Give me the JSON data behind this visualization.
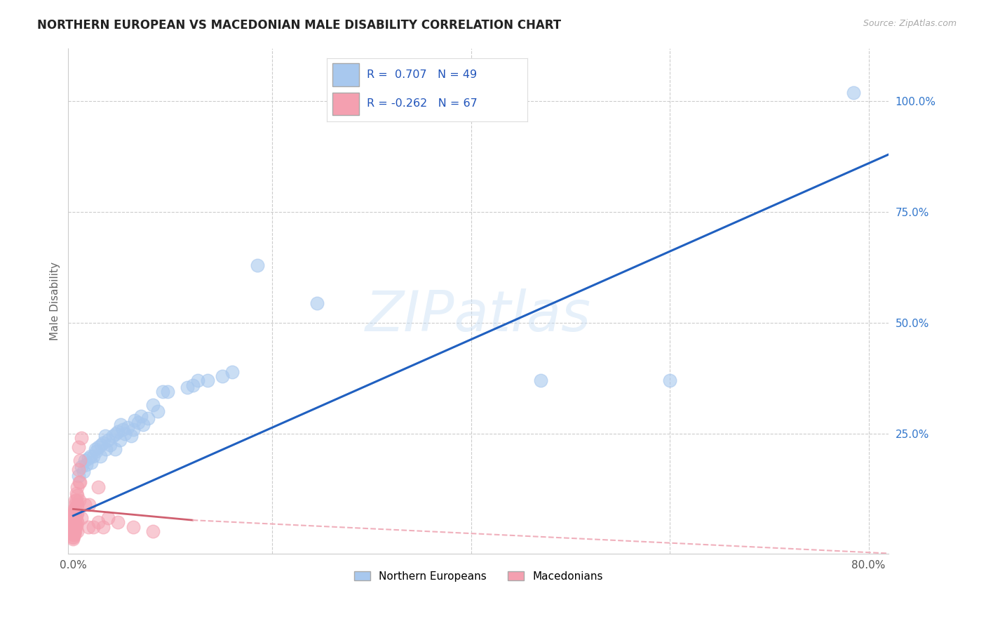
{
  "title": "NORTHERN EUROPEAN VS MACEDONIAN MALE DISABILITY CORRELATION CHART",
  "source": "Source: ZipAtlas.com",
  "ylabel": "Male Disability",
  "watermark": "ZIPatlas",
  "xlim": [
    -0.005,
    0.82
  ],
  "ylim": [
    -0.02,
    1.12
  ],
  "xtick_positions": [
    0.0,
    0.8
  ],
  "xticklabels": [
    "0.0%",
    "80.0%"
  ],
  "yticks_right": [
    0.0,
    0.25,
    0.5,
    0.75,
    1.0
  ],
  "yticklabels_right": [
    "",
    "25.0%",
    "50.0%",
    "75.0%",
    "100.0%"
  ],
  "blue_color": "#a8c8ee",
  "pink_color": "#f4a0b0",
  "blue_line_color": "#2060c0",
  "pink_line_color": "#d06070",
  "pink_dashed_color": "#f0b0bc",
  "grid_color": "#cccccc",
  "blue_scatter": [
    [
      0.005,
      0.155
    ],
    [
      0.008,
      0.175
    ],
    [
      0.01,
      0.165
    ],
    [
      0.012,
      0.19
    ],
    [
      0.013,
      0.18
    ],
    [
      0.015,
      0.195
    ],
    [
      0.017,
      0.2
    ],
    [
      0.018,
      0.185
    ],
    [
      0.02,
      0.2
    ],
    [
      0.022,
      0.215
    ],
    [
      0.023,
      0.21
    ],
    [
      0.025,
      0.22
    ],
    [
      0.027,
      0.2
    ],
    [
      0.028,
      0.225
    ],
    [
      0.03,
      0.23
    ],
    [
      0.032,
      0.245
    ],
    [
      0.033,
      0.215
    ],
    [
      0.035,
      0.235
    ],
    [
      0.037,
      0.225
    ],
    [
      0.04,
      0.245
    ],
    [
      0.042,
      0.215
    ],
    [
      0.043,
      0.25
    ],
    [
      0.045,
      0.255
    ],
    [
      0.047,
      0.235
    ],
    [
      0.048,
      0.27
    ],
    [
      0.05,
      0.26
    ],
    [
      0.052,
      0.25
    ],
    [
      0.055,
      0.265
    ],
    [
      0.058,
      0.245
    ],
    [
      0.06,
      0.26
    ],
    [
      0.062,
      0.28
    ],
    [
      0.065,
      0.275
    ],
    [
      0.068,
      0.29
    ],
    [
      0.07,
      0.27
    ],
    [
      0.075,
      0.285
    ],
    [
      0.08,
      0.315
    ],
    [
      0.085,
      0.3
    ],
    [
      0.09,
      0.345
    ],
    [
      0.095,
      0.345
    ],
    [
      0.115,
      0.355
    ],
    [
      0.12,
      0.36
    ],
    [
      0.125,
      0.37
    ],
    [
      0.135,
      0.37
    ],
    [
      0.15,
      0.38
    ],
    [
      0.16,
      0.39
    ],
    [
      0.185,
      0.63
    ],
    [
      0.245,
      0.545
    ],
    [
      0.47,
      0.37
    ],
    [
      0.6,
      0.37
    ],
    [
      0.785,
      1.02
    ]
  ],
  "pink_scatter": [
    [
      0.0,
      0.07
    ],
    [
      0.0,
      0.065
    ],
    [
      0.0,
      0.06
    ],
    [
      0.0,
      0.055
    ],
    [
      0.0,
      0.05
    ],
    [
      0.0,
      0.048
    ],
    [
      0.0,
      0.045
    ],
    [
      0.0,
      0.042
    ],
    [
      0.0,
      0.038
    ],
    [
      0.0,
      0.035
    ],
    [
      0.0,
      0.032
    ],
    [
      0.0,
      0.028
    ],
    [
      0.0,
      0.025
    ],
    [
      0.0,
      0.022
    ],
    [
      0.0,
      0.018
    ],
    [
      0.0,
      0.015
    ],
    [
      0.0,
      0.012
    ],
    [
      0.001,
      0.08
    ],
    [
      0.001,
      0.075
    ],
    [
      0.001,
      0.07
    ],
    [
      0.001,
      0.065
    ],
    [
      0.001,
      0.06
    ],
    [
      0.001,
      0.055
    ],
    [
      0.001,
      0.048
    ],
    [
      0.001,
      0.042
    ],
    [
      0.001,
      0.035
    ],
    [
      0.001,
      0.028
    ],
    [
      0.001,
      0.022
    ],
    [
      0.002,
      0.1
    ],
    [
      0.002,
      0.09
    ],
    [
      0.002,
      0.08
    ],
    [
      0.002,
      0.07
    ],
    [
      0.002,
      0.06
    ],
    [
      0.002,
      0.05
    ],
    [
      0.002,
      0.04
    ],
    [
      0.002,
      0.03
    ],
    [
      0.003,
      0.115
    ],
    [
      0.003,
      0.1
    ],
    [
      0.003,
      0.085
    ],
    [
      0.003,
      0.07
    ],
    [
      0.003,
      0.055
    ],
    [
      0.003,
      0.042
    ],
    [
      0.004,
      0.13
    ],
    [
      0.004,
      0.11
    ],
    [
      0.004,
      0.09
    ],
    [
      0.004,
      0.07
    ],
    [
      0.004,
      0.05
    ],
    [
      0.004,
      0.03
    ],
    [
      0.005,
      0.22
    ],
    [
      0.005,
      0.17
    ],
    [
      0.006,
      0.14
    ],
    [
      0.006,
      0.1
    ],
    [
      0.007,
      0.19
    ],
    [
      0.007,
      0.14
    ],
    [
      0.008,
      0.24
    ],
    [
      0.008,
      0.06
    ],
    [
      0.012,
      0.09
    ],
    [
      0.015,
      0.04
    ],
    [
      0.016,
      0.09
    ],
    [
      0.02,
      0.04
    ],
    [
      0.025,
      0.05
    ],
    [
      0.03,
      0.04
    ],
    [
      0.025,
      0.13
    ],
    [
      0.035,
      0.06
    ],
    [
      0.045,
      0.05
    ],
    [
      0.06,
      0.04
    ],
    [
      0.08,
      0.03
    ]
  ],
  "blue_regression": [
    0.0,
    0.065,
    0.82,
    0.88
  ],
  "pink_solid_regression": [
    0.0,
    0.08,
    0.12,
    0.055
  ],
  "pink_dashed_regression": [
    0.12,
    0.055,
    0.82,
    -0.02
  ]
}
